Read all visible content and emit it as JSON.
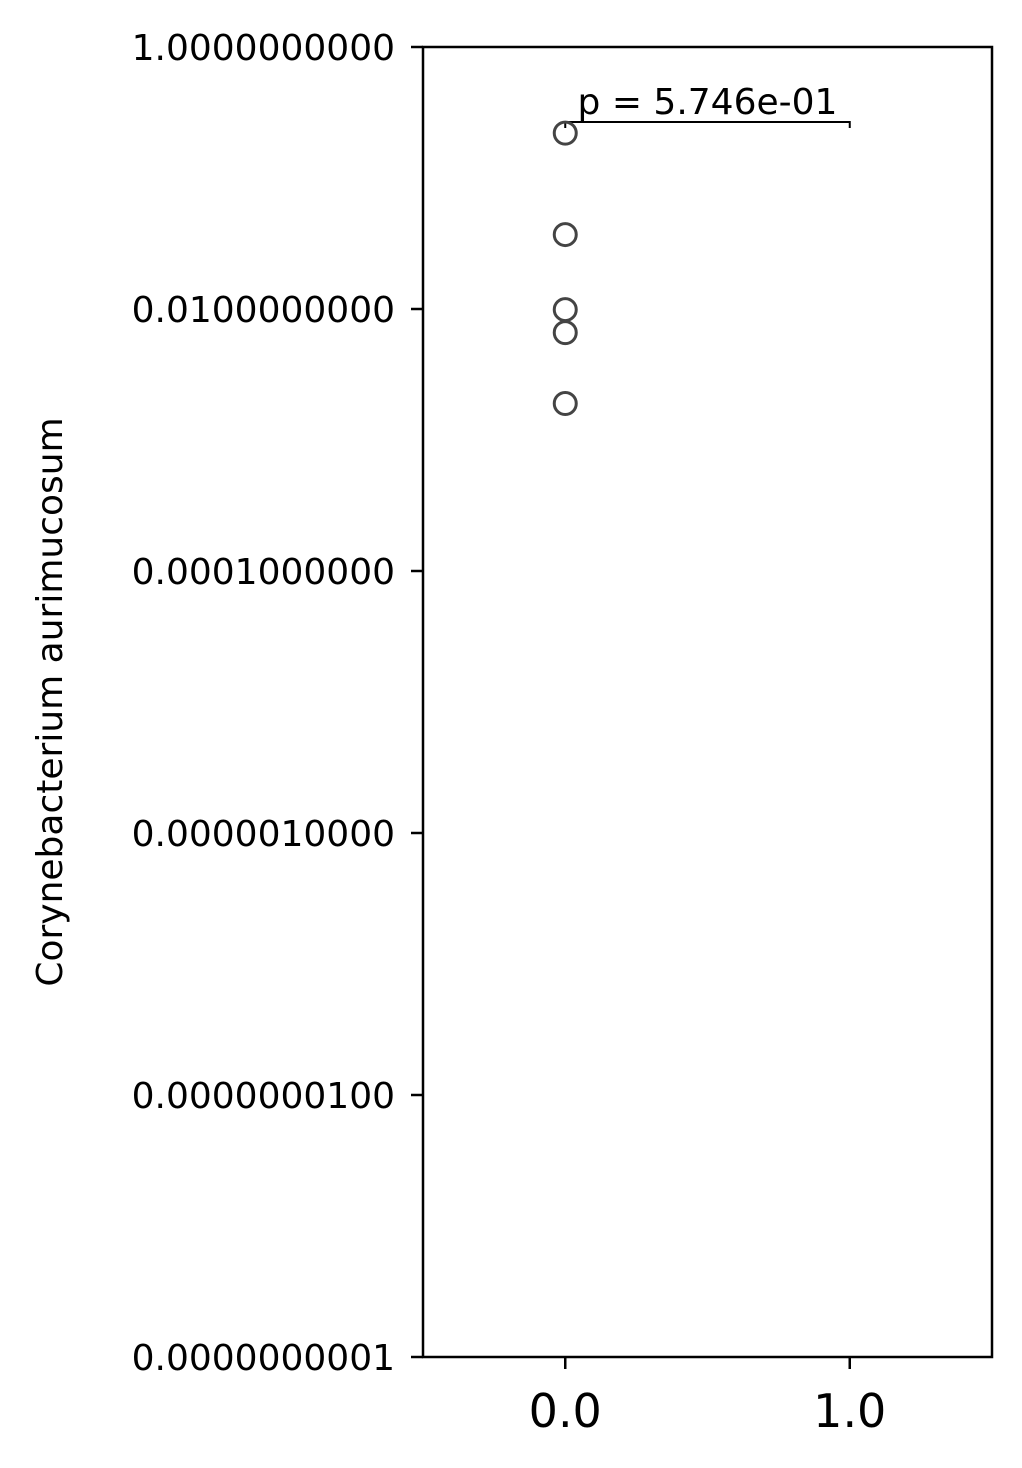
{
  "chart_data": {
    "type": "scatter",
    "title": "",
    "xlabel": "",
    "ylabel": "Corynebacterium aurimucosum",
    "yscale": "log",
    "ylim": [
      1e-10,
      1
    ],
    "xlim": [
      -0.5,
      1.5
    ],
    "x_ticks": [
      0,
      1
    ],
    "x_tick_labels": [
      "0.0",
      "1.0"
    ],
    "y_ticks": [
      1,
      0.01,
      0.0001,
      1e-06,
      1e-08,
      1e-10
    ],
    "y_tick_labels": [
      "1.0000000000",
      "0.0100000000",
      "0.0001000000",
      "0.0000010000",
      "0.0000000100",
      "0.0000000001"
    ],
    "grid": false,
    "legend": "none",
    "series": [
      {
        "group": 0,
        "points": [
          {
            "x": 0,
            "y": 0.22
          },
          {
            "x": 0.0,
            "y": 0.037
          },
          {
            "x": 0.0,
            "y": 0.0099
          },
          {
            "x": 0.0,
            "y": 0.0066
          },
          {
            "x": 0.0,
            "y": 0.0019
          }
        ]
      }
    ],
    "annotation": {
      "text": "p = 5.746e-01",
      "from_x": 0,
      "to_x": 1
    },
    "colors": {
      "marker_edge": "#444444",
      "axis": "#000000"
    }
  }
}
